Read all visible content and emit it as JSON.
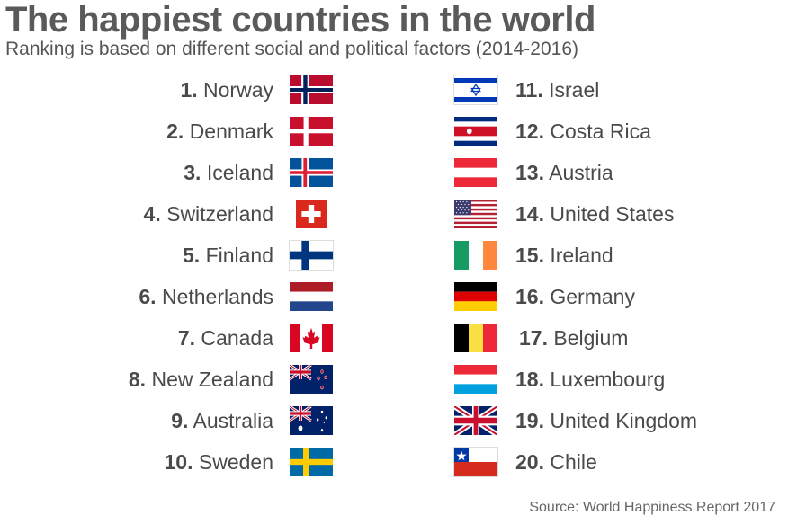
{
  "title": "The happiest countries in the world",
  "subtitle": "Ranking is based on different social and political factors (2014-2016)",
  "source": "Source: World Happiness Report 2017",
  "countries": [
    {
      "rank": "1.",
      "name": "Norway",
      "flag": "norway-flag"
    },
    {
      "rank": "2.",
      "name": "Denmark",
      "flag": "denmark-flag"
    },
    {
      "rank": "3.",
      "name": "Iceland",
      "flag": "iceland-flag"
    },
    {
      "rank": "4.",
      "name": "Switzerland",
      "flag": "switzerland-flag"
    },
    {
      "rank": "5.",
      "name": "Finland",
      "flag": "finland-flag"
    },
    {
      "rank": "6.",
      "name": "Netherlands",
      "flag": "netherlands-flag"
    },
    {
      "rank": "7.",
      "name": "Canada",
      "flag": "canada-flag"
    },
    {
      "rank": "8.",
      "name": "New Zealand",
      "flag": "new-zealand-flag"
    },
    {
      "rank": "9.",
      "name": "Australia",
      "flag": "australia-flag"
    },
    {
      "rank": "10.",
      "name": "Sweden",
      "flag": "sweden-flag"
    },
    {
      "rank": "11.",
      "name": "Israel",
      "flag": "israel-flag"
    },
    {
      "rank": "12.",
      "name": "Costa Rica",
      "flag": "costa-rica-flag"
    },
    {
      "rank": "13.",
      "name": "Austria",
      "flag": "austria-flag"
    },
    {
      "rank": "14.",
      "name": "United States",
      "flag": "united-states-flag"
    },
    {
      "rank": "15.",
      "name": "Ireland",
      "flag": "ireland-flag"
    },
    {
      "rank": "16.",
      "name": "Germany",
      "flag": "germany-flag"
    },
    {
      "rank": "17.",
      "name": "Belgium",
      "flag": "belgium-flag"
    },
    {
      "rank": "18.",
      "name": "Luxembourg",
      "flag": "luxembourg-flag"
    },
    {
      "rank": "19.",
      "name": "United Kingdom",
      "flag": "united-kingdom-flag"
    },
    {
      "rank": "20.",
      "name": "Chile",
      "flag": "chile-flag"
    }
  ],
  "colors": {
    "title": "#5a5a5a",
    "text": "#4a4a4a"
  }
}
